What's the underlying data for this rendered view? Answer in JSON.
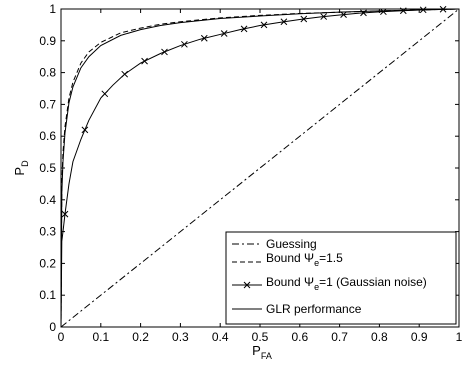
{
  "chart_data": {
    "type": "line",
    "title": "",
    "xlabel": "P",
    "xlabel_sub": "FA",
    "ylabel": "P",
    "ylabel_sub": "D",
    "xlim": [
      0,
      1
    ],
    "ylim": [
      0,
      1
    ],
    "xticks": [
      "0",
      "0.1",
      "0.2",
      "0.3",
      "0.4",
      "0.5",
      "0.6",
      "0.7",
      "0.8",
      "0.9",
      "1"
    ],
    "yticks": [
      "0",
      "0.1",
      "0.2",
      "0.3",
      "0.4",
      "0.5",
      "0.6",
      "0.7",
      "0.8",
      "0.9",
      "1"
    ],
    "grid": false,
    "legend_position": "bottom-right",
    "series": [
      {
        "name": "Guessing",
        "style": "dash-dot",
        "x": [
          0,
          1
        ],
        "y": [
          0,
          1
        ]
      },
      {
        "name": "Bound Ψe=1.5",
        "legend_parts": [
          "Bound Ψ",
          "e",
          "=1.5"
        ],
        "style": "dashed",
        "x": [
          0,
          0.002,
          0.005,
          0.01,
          0.02,
          0.03,
          0.05,
          0.07,
          0.1,
          0.15,
          0.2,
          0.25,
          0.3,
          0.4,
          0.5,
          0.6,
          0.7,
          0.8,
          0.9,
          1.0
        ],
        "y": [
          0,
          0.45,
          0.55,
          0.63,
          0.72,
          0.77,
          0.83,
          0.865,
          0.895,
          0.925,
          0.94,
          0.952,
          0.96,
          0.972,
          0.98,
          0.986,
          0.99,
          0.994,
          0.997,
          1.0
        ]
      },
      {
        "name": "Bound Ψe=1 (Gaussian noise)",
        "legend_parts": [
          "Bound Ψ",
          "e",
          "=1 (Gaussian noise)"
        ],
        "style": "solid-x",
        "x": [
          0,
          0.002,
          0.005,
          0.01,
          0.02,
          0.03,
          0.05,
          0.07,
          0.1,
          0.13,
          0.16,
          0.2,
          0.25,
          0.3,
          0.35,
          0.4,
          0.45,
          0.5,
          0.55,
          0.6,
          0.65,
          0.7,
          0.75,
          0.8,
          0.85,
          0.9,
          0.95,
          1.0
        ],
        "y": [
          0,
          0.27,
          0.3,
          0.355,
          0.45,
          0.52,
          0.59,
          0.65,
          0.72,
          0.76,
          0.795,
          0.83,
          0.86,
          0.885,
          0.905,
          0.92,
          0.935,
          0.948,
          0.958,
          0.967,
          0.975,
          0.981,
          0.987,
          0.991,
          0.994,
          0.997,
          0.999,
          1.0
        ],
        "marker_x": [
          0.01,
          0.06,
          0.11,
          0.16,
          0.21,
          0.26,
          0.31,
          0.36,
          0.41,
          0.46,
          0.51,
          0.56,
          0.61,
          0.66,
          0.71,
          0.76,
          0.81,
          0.86,
          0.91,
          0.96
        ]
      },
      {
        "name": "GLR performance",
        "style": "solid",
        "x": [
          0,
          0.002,
          0.005,
          0.01,
          0.02,
          0.03,
          0.05,
          0.07,
          0.1,
          0.15,
          0.2,
          0.25,
          0.3,
          0.4,
          0.5,
          0.6,
          0.7,
          0.8,
          0.9,
          1.0
        ],
        "y": [
          0,
          0.42,
          0.52,
          0.61,
          0.705,
          0.755,
          0.815,
          0.85,
          0.885,
          0.917,
          0.935,
          0.948,
          0.957,
          0.97,
          0.978,
          0.985,
          0.99,
          0.994,
          0.997,
          1.0
        ]
      }
    ]
  }
}
